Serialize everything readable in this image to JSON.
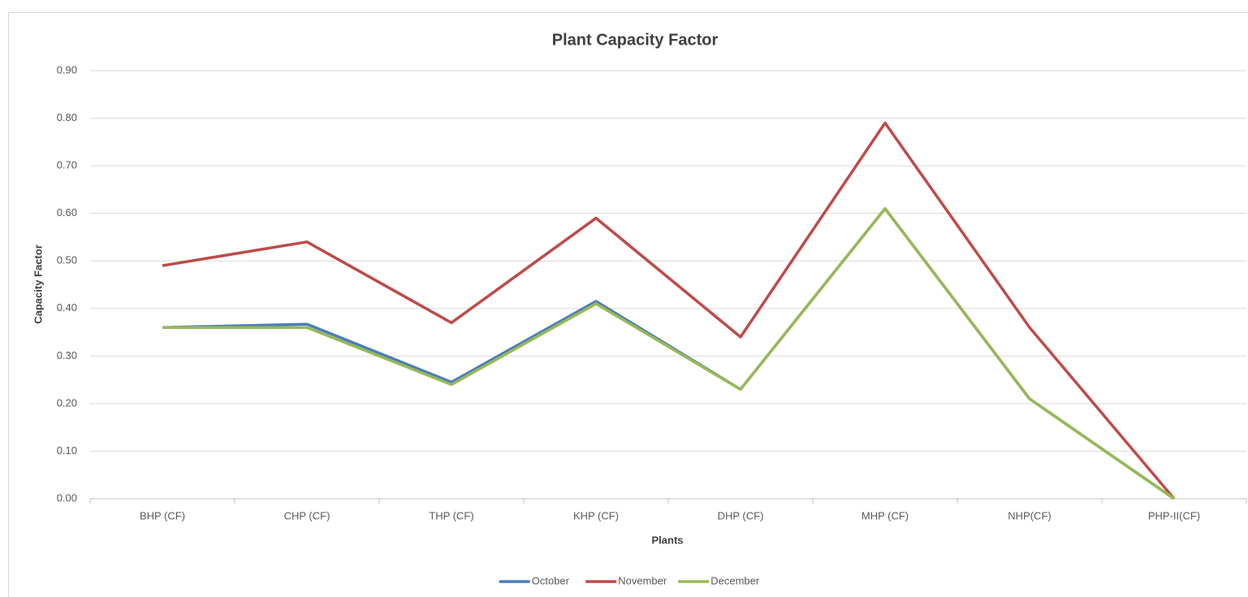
{
  "chart_data": {
    "type": "line",
    "title": "Plant Capacity Factor",
    "x_label": "Plants",
    "y_label": "Capacity Factor",
    "categories": [
      "BHP (CF)",
      "CHP (CF)",
      "THP (CF)",
      "KHP (CF)",
      "DHP (CF)",
      "MHP (CF)",
      "NHP(CF)",
      "PHP-II(CF)"
    ],
    "series": [
      {
        "name": "October",
        "color": "#4a7ebb",
        "values": [
          0.36,
          0.367,
          0.245,
          0.415,
          0.23,
          0.61,
          0.21,
          0
        ]
      },
      {
        "name": "November",
        "color": "#be4b48",
        "values": [
          0.49,
          0.54,
          0.37,
          0.59,
          0.34,
          0.79,
          0.36,
          0
        ]
      },
      {
        "name": "December",
        "color": "#98b954",
        "values": [
          0.36,
          0.36,
          0.24,
          0.41,
          0.23,
          0.61,
          0.21,
          0
        ]
      }
    ],
    "ylim": [
      0,
      0.9
    ],
    "yticks": [
      {
        "value": 0,
        "label": "0.00"
      },
      {
        "value": 0.1,
        "label": "0.10"
      },
      {
        "value": 0.2,
        "label": "0.20"
      },
      {
        "value": 0.3,
        "label": "0.30"
      },
      {
        "value": 0.4,
        "label": "0.40"
      },
      {
        "value": 0.5,
        "label": "0.50"
      },
      {
        "value": 0.6,
        "label": "0.60"
      },
      {
        "value": 0.7,
        "label": "0.70"
      },
      {
        "value": 0.8,
        "label": "0.80"
      },
      {
        "value": 0.9,
        "label": "0.90"
      }
    ],
    "grid": true,
    "legend": "bottom"
  }
}
